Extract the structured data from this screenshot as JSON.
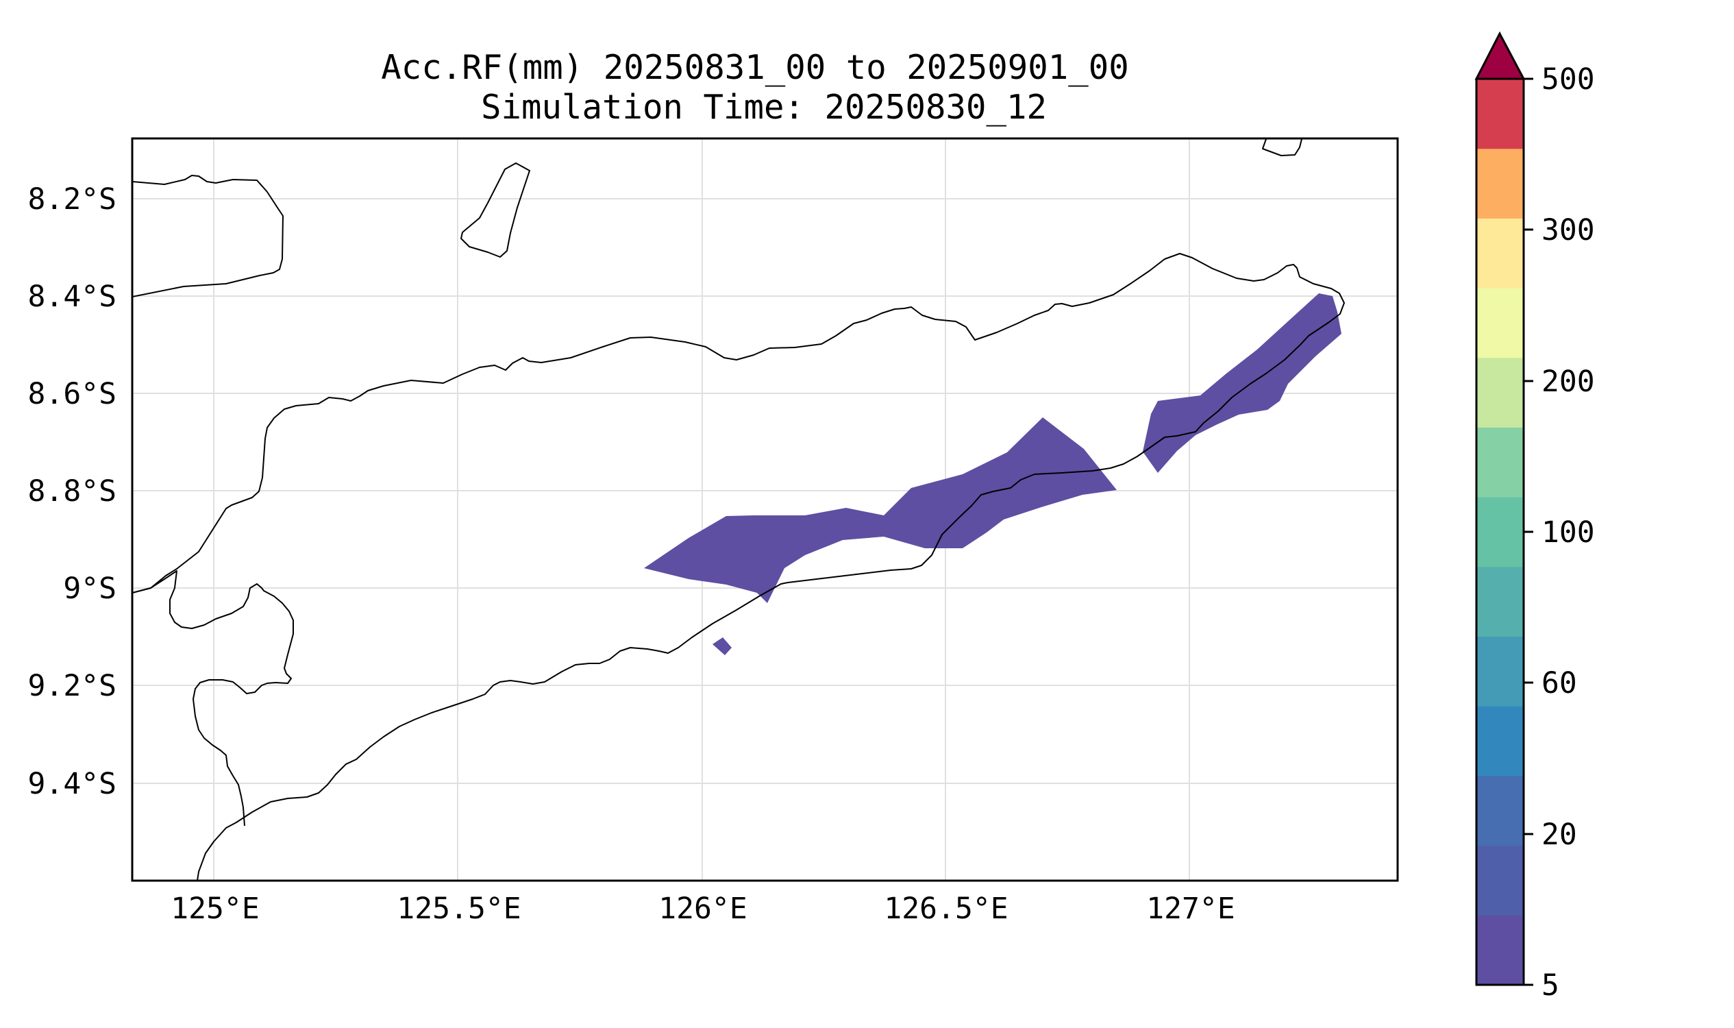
{
  "title": {
    "line1": "Acc.RF(mm) 20250831_00 to 20250901_00",
    "line2": "Simulation Time: 20250830_12"
  },
  "map": {
    "lon_ticks": [
      "125°E",
      "125.5°E",
      "126°E",
      "126.5°E",
      "127°E"
    ],
    "lat_ticks": [
      "8.2°S",
      "8.4°S",
      "8.6°S",
      "8.8°S",
      "9°S",
      "9.2°S",
      "9.4°S"
    ],
    "rain_area_level": "5-10 mm"
  },
  "colorbar": {
    "levels": [
      5,
      10,
      20,
      40,
      60,
      80,
      100,
      150,
      200,
      250,
      300,
      350,
      500
    ],
    "tick_labels": [
      "5",
      "20",
      "60",
      "100",
      "200",
      "300",
      "500"
    ],
    "colors": [
      "#5e4fa2",
      "#4f5faa",
      "#466eb0",
      "#3288bd",
      "#439bb5",
      "#55b0ad",
      "#66c2a5",
      "#86d0a5",
      "#c7e89e",
      "#eff9a6",
      "#fee999",
      "#fdae61",
      "#d53e4f"
    ],
    "extend_color": "#9e0142"
  },
  "colors": {
    "coastline": "#000000",
    "grid": "#e0e0e0",
    "frame": "#000000"
  }
}
